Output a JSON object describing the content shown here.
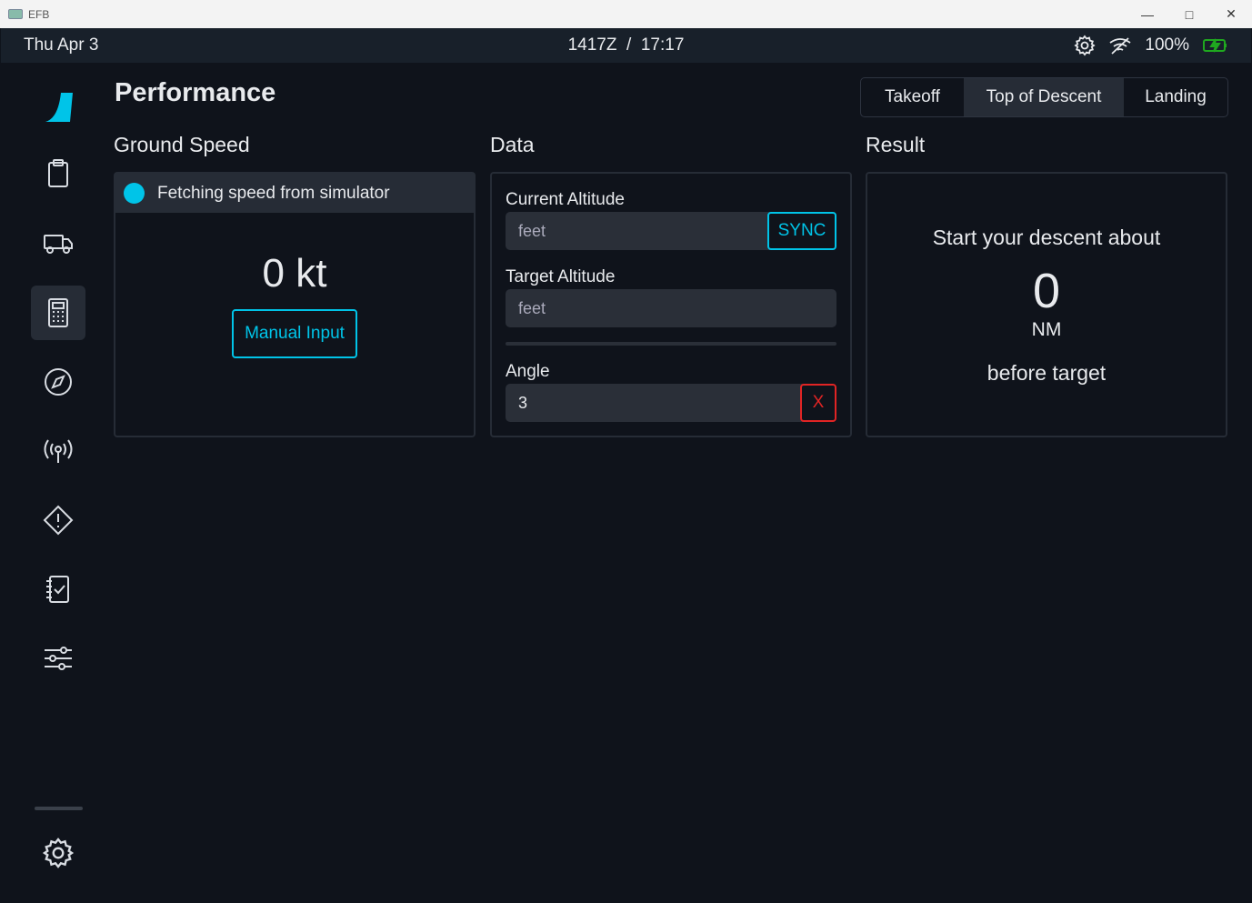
{
  "window": {
    "title": "EFB"
  },
  "status": {
    "date": "Thu Apr 3",
    "time": "1417Z  /  17:17",
    "battery": "100%",
    "battery_color": "#1fa81f"
  },
  "page": {
    "title": "Performance"
  },
  "tabs": [
    {
      "label": "Takeoff"
    },
    {
      "label": "Top of Descent",
      "active": true
    },
    {
      "label": "Landing"
    }
  ],
  "ground_speed": {
    "heading": "Ground Speed",
    "status": "Fetching speed from simulator",
    "value": "0 kt",
    "manual_label": "Manual Input"
  },
  "data": {
    "heading": "Data",
    "current_altitude_label": "Current Altitude",
    "current_altitude_placeholder": "feet",
    "sync_label": "SYNC",
    "target_altitude_label": "Target Altitude",
    "target_altitude_placeholder": "feet",
    "angle_label": "Angle",
    "angle_value": "3",
    "clear_label": "X"
  },
  "result": {
    "heading": "Result",
    "line1": "Start your descent about",
    "value": "0",
    "unit": "NM",
    "line2": "before target"
  },
  "colors": {
    "accent": "#00c4e8",
    "danger": "#e02424",
    "background": "#0f131b"
  }
}
